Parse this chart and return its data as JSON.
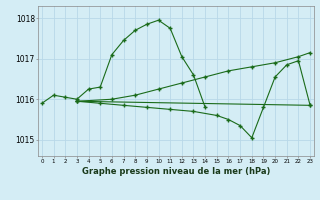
{
  "title": "Graphe pression niveau de la mer (hPa)",
  "bg_color": "#d4edf5",
  "grid_color": "#b8d8e8",
  "line_color": "#1a6b1a",
  "marker_color": "#1a6b1a",
  "yticks": [
    1015,
    1016,
    1017,
    1018
  ],
  "ylim": [
    1014.6,
    1018.3
  ],
  "xlim": [
    -0.3,
    23.3
  ],
  "lines": [
    {
      "x": [
        0,
        1,
        2,
        3,
        4,
        5,
        6,
        7,
        8,
        9,
        10,
        11,
        12,
        13,
        14
      ],
      "y": [
        1015.9,
        1016.1,
        1016.05,
        1016.0,
        1016.25,
        1016.3,
        1017.1,
        1017.45,
        1017.7,
        1017.85,
        1017.95,
        1017.75,
        1017.05,
        1016.6,
        1015.8
      ]
    },
    {
      "x": [
        3,
        6,
        8,
        10,
        12,
        14,
        16,
        18,
        20,
        22,
        23
      ],
      "y": [
        1015.95,
        1016.0,
        1016.1,
        1016.25,
        1016.4,
        1016.55,
        1016.7,
        1016.8,
        1016.9,
        1017.05,
        1017.15
      ]
    },
    {
      "x": [
        3,
        5,
        7,
        9,
        11,
        13,
        15,
        16,
        17,
        18,
        19,
        20,
        21,
        22,
        23
      ],
      "y": [
        1015.95,
        1015.9,
        1015.85,
        1015.8,
        1015.75,
        1015.7,
        1015.6,
        1015.5,
        1015.35,
        1015.05,
        1015.8,
        1016.55,
        1016.85,
        1016.95,
        1015.85
      ]
    },
    {
      "x": [
        3,
        23
      ],
      "y": [
        1015.95,
        1015.85
      ]
    }
  ]
}
